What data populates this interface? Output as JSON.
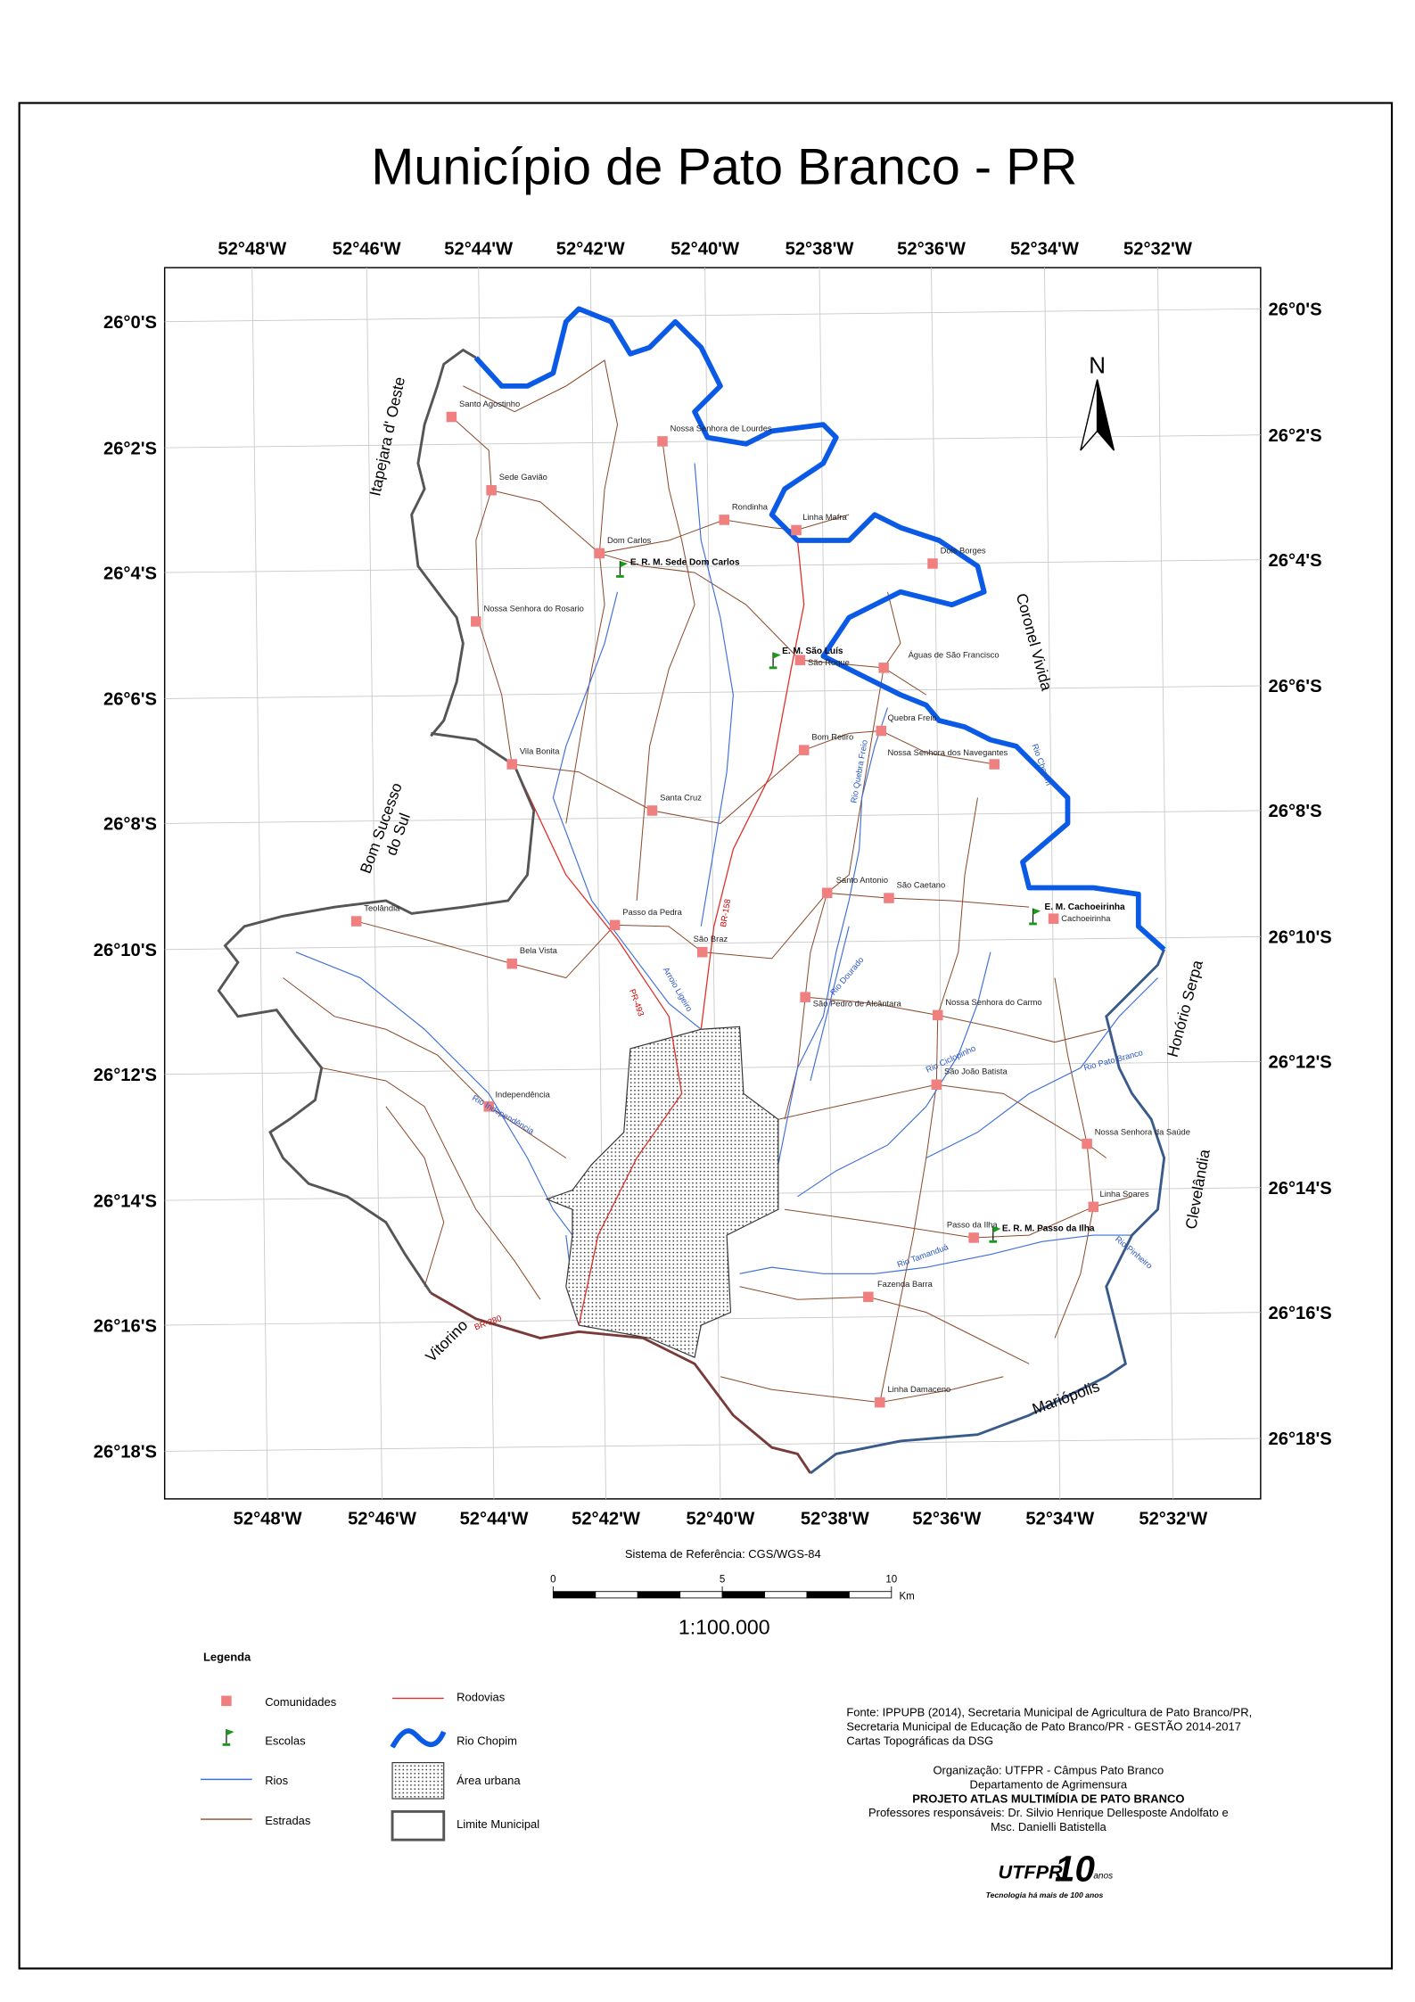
{
  "title": "Município de Pato Branco - PR",
  "graticule": {
    "longitudes": [
      "52°48'W",
      "52°46'W",
      "52°44'W",
      "52°42'W",
      "52°40'W",
      "52°38'W",
      "52°36'W",
      "52°34'W",
      "52°32'W"
    ],
    "latitudes": [
      "26°0'S",
      "26°2'S",
      "26°4'S",
      "26°6'S",
      "26°8'S",
      "26°10'S",
      "26°12'S",
      "26°14'S",
      "26°16'S",
      "26°18'S"
    ]
  },
  "north": "N",
  "neighbors": [
    [
      "Itapejara d' Oeste"
    ],
    [
      "Bom Sucesso",
      "do Sul"
    ],
    [
      "Coronel Vivida"
    ],
    [
      "Honório Serpa"
    ],
    [
      "Clevelândia"
    ],
    [
      "Mariópolis"
    ],
    [
      "Vitorino"
    ]
  ],
  "communities": [
    "Santo Agostinho",
    "Nossa Senhora de Lourdes",
    "Sede Gavião",
    "Rondinha",
    "Linha Mafra",
    "Dom Carlos",
    "Dois Borges",
    "Nossa Senhora do Rosario",
    "São Roque",
    "Águas de São Francisco",
    "Quebra Freio",
    "Vila Bonita",
    "Bom Retiro",
    "Nossa Senhora dos Navegantes",
    "Santa Cruz",
    "Santo Antonio",
    "São Caetano",
    "Cachoeirinha",
    "Passo da Pedra",
    "São Braz",
    "Teolândia",
    "Bela Vista",
    "São Pedro de Alcântara",
    "Nossa Senhora do Carmo",
    "São João Batista",
    "Independência",
    "Nossa Senhora da Saúde",
    "Linha Soares",
    "Passo da Ilha",
    "Fazenda Barra",
    "Linha Damaceno"
  ],
  "schools": [
    "E. R. M. Sede Dom Carlos",
    "E. M. São Luís",
    "E. M. Cachoeirinha",
    "E. R. M. Passo da Ilha"
  ],
  "rivers": [
    "Rio Quebra Freio",
    "Rio Chopim",
    "Arroio Ligeiro",
    "Rio Dourado",
    "Rio Ciclopinho",
    "Rio Pato Branco",
    "Rio Independência",
    "Rio Tamanduá",
    "Rio Pinheiro"
  ],
  "highways": [
    "PR-493",
    "BR-158",
    "BR-280"
  ],
  "reference_system": "Sistema de Referência: CGS/WGS-84",
  "scale": {
    "ticks": [
      0,
      5,
      10
    ],
    "unit": "Km",
    "ratio": "1:100.000"
  },
  "legend": {
    "title": "Legenda",
    "items": [
      "Comunidades",
      "Escolas",
      "Rios",
      "Estradas",
      "Rodovias",
      "Rio Chopim",
      "Área urbana",
      "Limite Municipal"
    ]
  },
  "credits": {
    "source": [
      "Fonte: IPPUPB (2014), Secretaria Municipal de Agricultura de Pato Branco/PR,",
      "Secretaria Municipal de Educação de Pato Branco/PR - GESTÃO 2014-2017",
      "Cartas Topográficas da DSG"
    ],
    "organization": [
      "Organização: UTFPR - Câmpus Pato Branco",
      "Departamento de Agrimensura",
      "PROJETO ATLAS MULTIMÍDIA DE PATO BRANCO",
      "Professores responsáveis: Dr. Silvio Henrique Dellesposte Andolfato e",
      "Msc. Danielli Batistella"
    ]
  },
  "logo": {
    "name": "UTFPR",
    "years": "10",
    "anos": "anos",
    "tagline": "Tecnologia há mais de 100 anos"
  }
}
